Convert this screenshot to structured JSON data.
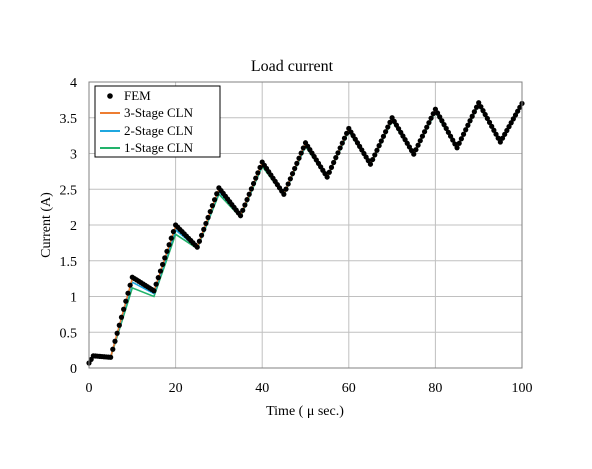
{
  "chart_data": {
    "type": "line",
    "title": "Load current",
    "xlabel": "Time ( μ sec.)",
    "ylabel": "Current (A)",
    "xlim": [
      0,
      100
    ],
    "ylim": [
      0,
      4
    ],
    "xticks": [
      0,
      20,
      40,
      60,
      80,
      100
    ],
    "yticks": [
      0,
      0.5,
      1,
      1.5,
      2,
      2.5,
      3,
      3.5,
      4
    ],
    "grid": true,
    "legend_position": "top-left",
    "series": [
      {
        "name": "FEM",
        "style": "markers",
        "color": "#000000",
        "x": [
          0,
          1,
          5,
          10,
          15,
          20,
          25,
          30,
          35,
          40,
          45,
          50,
          55,
          60,
          65,
          70,
          75,
          80,
          85,
          90,
          95,
          100
        ],
        "y": [
          0.07,
          0.17,
          0.15,
          1.27,
          1.08,
          2.0,
          1.69,
          2.52,
          2.13,
          2.88,
          2.43,
          3.15,
          2.67,
          3.35,
          2.85,
          3.5,
          2.99,
          3.62,
          3.08,
          3.71,
          3.16,
          3.7
        ]
      },
      {
        "name": "3-Stage CLN",
        "style": "line",
        "color": "#ed7d31",
        "x": [
          0,
          1,
          5,
          10,
          15,
          20,
          25,
          30,
          35,
          40,
          45,
          50,
          55,
          60,
          65,
          70,
          75,
          80,
          85,
          90,
          95,
          100
        ],
        "y": [
          0.07,
          0.17,
          0.15,
          1.25,
          1.07,
          1.98,
          1.69,
          2.5,
          2.13,
          2.87,
          2.43,
          3.14,
          2.67,
          3.34,
          2.85,
          3.49,
          2.99,
          3.61,
          3.08,
          3.7,
          3.16,
          3.7
        ]
      },
      {
        "name": "2-Stage CLN",
        "style": "line",
        "color": "#1fa7df",
        "x": [
          0,
          1,
          5,
          10,
          15,
          20,
          25,
          30,
          35,
          40,
          45,
          50,
          55,
          60,
          65,
          70,
          75,
          80,
          85,
          90,
          95,
          100
        ],
        "y": [
          0.07,
          0.17,
          0.15,
          1.2,
          1.04,
          1.93,
          1.68,
          2.47,
          2.12,
          2.85,
          2.43,
          3.12,
          2.67,
          3.33,
          2.85,
          3.48,
          2.99,
          3.6,
          3.08,
          3.69,
          3.16,
          3.69
        ]
      },
      {
        "name": "1-Stage CLN",
        "style": "line",
        "color": "#22b36b",
        "x": [
          0,
          1,
          5,
          10,
          15,
          20,
          25,
          30,
          35,
          40,
          45,
          50,
          55,
          60,
          65,
          70,
          75,
          80,
          85,
          90,
          95,
          100
        ],
        "y": [
          0.07,
          0.17,
          0.15,
          1.12,
          1.0,
          1.87,
          1.67,
          2.43,
          2.11,
          2.82,
          2.42,
          3.1,
          2.66,
          3.31,
          2.84,
          3.46,
          2.98,
          3.58,
          3.07,
          3.68,
          3.15,
          3.68
        ]
      }
    ]
  }
}
